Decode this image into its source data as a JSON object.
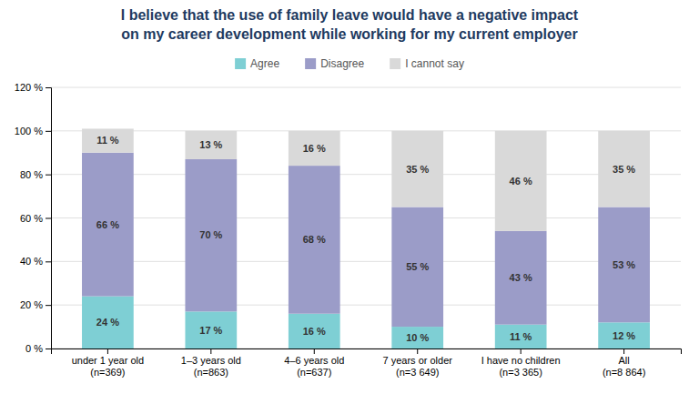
{
  "chart_data": {
    "type": "bar",
    "title": "I believe that the use of family leave would have a negative impact\non my career development while working for my current employer",
    "categories": [
      "under 1 year old\n(n=369)",
      "1–3 years old\n(n=863)",
      "4–6 years old\n(n=637)",
      "7 years or older\n(n=3 649)",
      "I have no children\n(n=3 365)",
      "All\n(n=8 864)"
    ],
    "series": [
      {
        "name": "Agree",
        "color": "#7ecfd4",
        "values": [
          24,
          17,
          16,
          10,
          11,
          12
        ],
        "value_labels": [
          "24 %",
          "17 %",
          "16 %",
          "10 %",
          "11 %",
          "12 %"
        ]
      },
      {
        "name": "Disagree",
        "color": "#9b9cc8",
        "values": [
          66,
          70,
          68,
          55,
          43,
          53
        ],
        "value_labels": [
          "66 %",
          "70 %",
          "68 %",
          "55 %",
          "43 %",
          "53 %"
        ]
      },
      {
        "name": "I cannot say",
        "color": "#d9d9d9",
        "values": [
          11,
          13,
          16,
          35,
          46,
          35
        ],
        "value_labels": [
          "11 %",
          "13 %",
          "16 %",
          "35 %",
          "46 %",
          "35 %"
        ]
      }
    ],
    "stacked": true,
    "data_labels": true,
    "legend": "top",
    "grid": true,
    "ylim": [
      0,
      120
    ],
    "yticks": [
      {
        "value": 0,
        "label": "0 %"
      },
      {
        "value": 20,
        "label": "20 %"
      },
      {
        "value": 40,
        "label": "40 %"
      },
      {
        "value": 60,
        "label": "60 %"
      },
      {
        "value": 80,
        "label": "80 %"
      },
      {
        "value": 100,
        "label": "100 %"
      },
      {
        "value": 120,
        "label": "120 %"
      }
    ]
  }
}
